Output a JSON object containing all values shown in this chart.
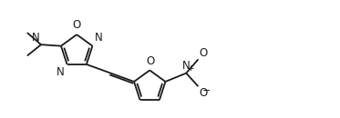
{
  "background": "#ffffff",
  "line_color": "#1a1a1a",
  "line_width": 1.3,
  "font_size": 8.5,
  "fig_width": 3.73,
  "fig_height": 1.3,
  "dpi": 100,
  "xlim": [
    -1.5,
    10.5
  ],
  "ylim": [
    -2.2,
    2.2
  ]
}
